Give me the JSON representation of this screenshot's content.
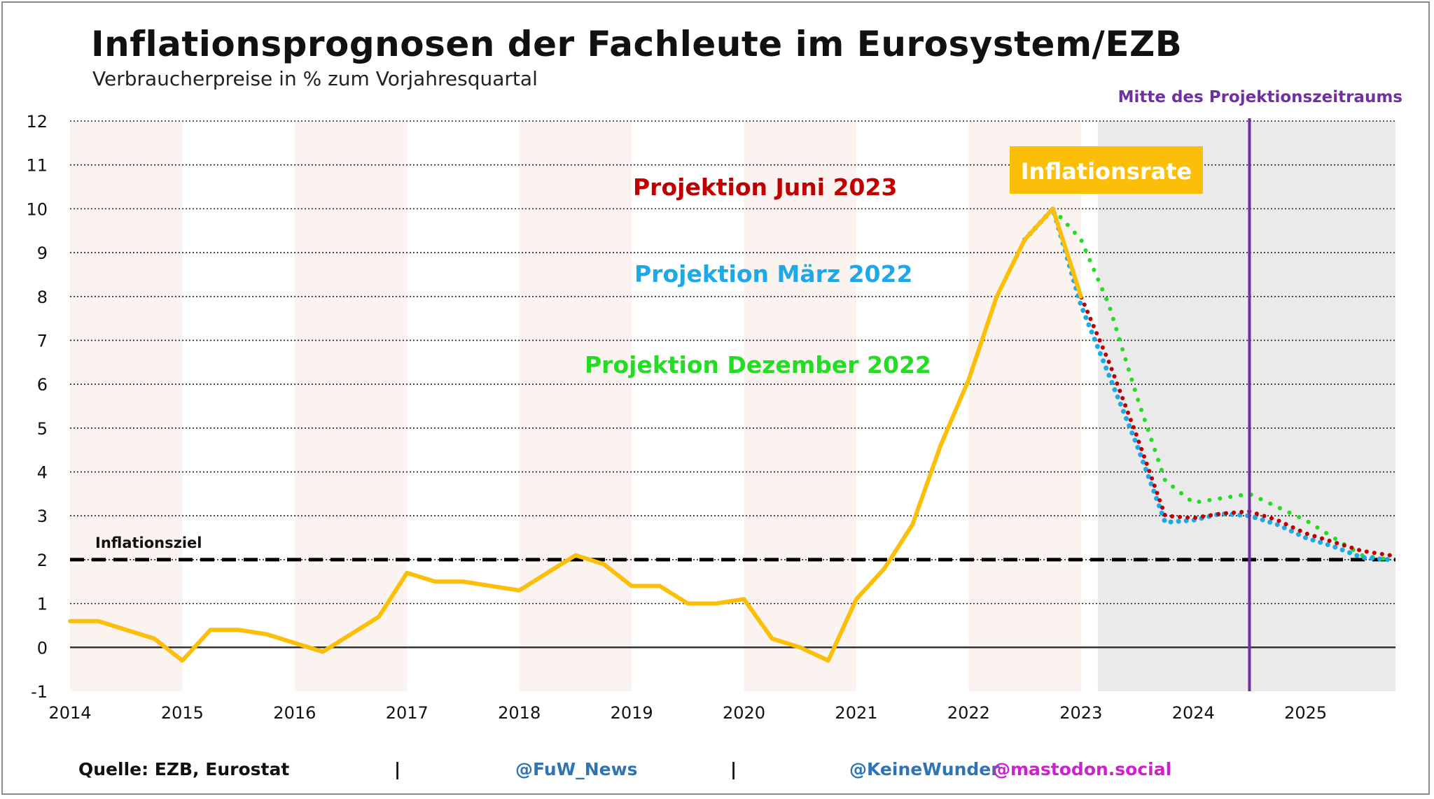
{
  "title": "Inflationsprognosen der Fachleute im Eurosystem/EZB",
  "subtitle": "Verbraucherpreise in % zum Vorjahresquartal",
  "footer": {
    "source": "Quelle: EZB, Eurostat",
    "separator": "|",
    "handle_fuw": "@FuW_News",
    "handle_user": "@KeineWunder",
    "handle_server": "@mastodon.social"
  },
  "colors": {
    "inflation": "#fbbf0a",
    "juni2023": "#c00000",
    "maerz2022": "#1ea8e8",
    "dezember2022": "#22dd22",
    "midline": "#7030a0",
    "target": "#000000",
    "inflation_box_text": "#ffffff",
    "stripe": "#faf3ef",
    "projection_band": "#e6e6e6"
  },
  "chart_data": {
    "type": "line",
    "title": "Inflationsprognosen der Fachleute im Eurosystem/EZB",
    "subtitle": "Verbraucherpreise in % zum Vorjahresquartal",
    "xlabel": "",
    "ylabel": "",
    "xlim": [
      2014,
      2025.8
    ],
    "ylim": [
      -1,
      12
    ],
    "yticks": [
      -1,
      0,
      1,
      2,
      3,
      4,
      5,
      6,
      7,
      8,
      9,
      10,
      11,
      12
    ],
    "ytick_labels": [
      "-1",
      "0",
      "1",
      "2",
      "3",
      "4",
      "5",
      "6",
      "7",
      "8",
      "9",
      "10",
      "11",
      "12"
    ],
    "xtick_labels": [
      "2014",
      "2015",
      "2016",
      "2017",
      "2018",
      "2019",
      "2020",
      "2021",
      "2022",
      "2023",
      "2024",
      "2025"
    ],
    "grid": "horizontal dotted",
    "shaded_years": [
      2014,
      2016,
      2018,
      2020,
      2022
    ],
    "projection_period": [
      2023.15,
      2025.8
    ],
    "series": [
      {
        "name": "Inflationsrate",
        "style": "solid",
        "x": [
          2014.0,
          2014.25,
          2014.5,
          2014.75,
          2015.0,
          2015.25,
          2015.5,
          2015.75,
          2016.0,
          2016.25,
          2016.5,
          2016.75,
          2017.0,
          2017.25,
          2017.5,
          2017.75,
          2018.0,
          2018.25,
          2018.5,
          2018.75,
          2019.0,
          2019.25,
          2019.5,
          2019.75,
          2020.0,
          2020.25,
          2020.5,
          2020.75,
          2021.0,
          2021.25,
          2021.5,
          2021.75,
          2022.0,
          2022.25,
          2022.5,
          2022.75,
          2023.0
        ],
        "values": [
          0.6,
          0.6,
          0.4,
          0.2,
          -0.3,
          0.4,
          0.4,
          0.3,
          0.1,
          -0.1,
          0.3,
          0.7,
          1.7,
          1.5,
          1.5,
          1.4,
          1.3,
          1.7,
          2.1,
          1.9,
          1.4,
          1.4,
          1.0,
          1.0,
          1.1,
          0.2,
          0.0,
          -0.3,
          1.1,
          1.8,
          2.8,
          4.6,
          6.1,
          8.0,
          9.3,
          10.0,
          8.0
        ]
      },
      {
        "name": "Projektion Juni 2023",
        "style": "dotted",
        "x": [
          2022.75,
          2023.0,
          2023.25,
          2023.5,
          2023.75,
          2024.0,
          2024.25,
          2024.5,
          2024.75,
          2025.0,
          2025.25,
          2025.5,
          2025.75
        ],
        "values": [
          10.0,
          8.0,
          6.5,
          4.8,
          3.0,
          2.95,
          3.05,
          3.1,
          2.9,
          2.6,
          2.4,
          2.2,
          2.1
        ]
      },
      {
        "name": "Projektion März 2022",
        "style": "dotted",
        "x": [
          2022.5,
          2022.75,
          2023.0,
          2023.25,
          2023.5,
          2023.75,
          2024.0,
          2024.25,
          2024.5,
          2024.75,
          2025.0,
          2025.25,
          2025.5,
          2025.75
        ],
        "values": [
          9.3,
          10.0,
          7.8,
          6.2,
          4.6,
          2.85,
          2.9,
          3.05,
          3.0,
          2.8,
          2.5,
          2.3,
          2.05,
          2.0
        ]
      },
      {
        "name": "Projektion Dezember 2022",
        "style": "dotted",
        "x": [
          2022.5,
          2022.75,
          2023.0,
          2023.25,
          2023.5,
          2023.75,
          2024.0,
          2024.25,
          2024.5,
          2024.75,
          2025.0,
          2025.25,
          2025.5,
          2025.75
        ],
        "values": [
          9.3,
          10.0,
          9.3,
          7.8,
          5.7,
          3.8,
          3.3,
          3.4,
          3.5,
          3.2,
          2.9,
          2.5,
          2.1,
          2.0
        ]
      }
    ],
    "reference_lines": [
      {
        "type": "horizontal",
        "value": 2,
        "label": "Inflationsziel",
        "style": "dashed"
      },
      {
        "type": "vertical",
        "value": 2024.5,
        "label": "Mitte des Projektionszeitraums",
        "style": "solid"
      }
    ],
    "annotations": [
      {
        "text": "Inflationsrate",
        "boxed": true
      },
      {
        "text": "Projektion Juni 2023"
      },
      {
        "text": "Projektion März 2022"
      },
      {
        "text": "Projektion Dezember 2022"
      }
    ]
  }
}
